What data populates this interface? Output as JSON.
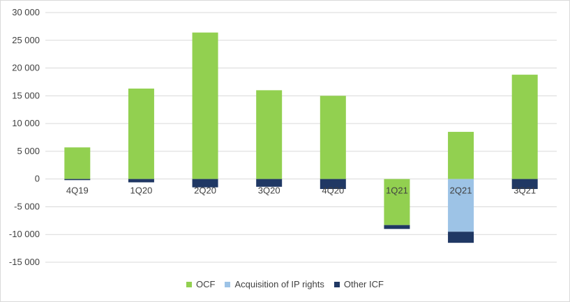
{
  "chart_data": {
    "type": "bar",
    "stacked": true,
    "categories": [
      "4Q19",
      "1Q20",
      "2Q20",
      "3Q20",
      "4Q20",
      "1Q21",
      "2Q21",
      "3Q21"
    ],
    "series": [
      {
        "name": "OCF",
        "color": "#92d050",
        "values": [
          5700,
          16300,
          26400,
          16000,
          15000,
          -8300,
          8500,
          18800
        ]
      },
      {
        "name": "Acquisition of IP rights",
        "color": "#9dc3e6",
        "values": [
          0,
          0,
          0,
          0,
          0,
          0,
          -9500,
          0
        ]
      },
      {
        "name": "Other ICF",
        "color": "#203864",
        "values": [
          -200,
          -600,
          -1500,
          -1400,
          -1800,
          -700,
          -2000,
          -1800
        ]
      }
    ],
    "yticks": [
      30000,
      25000,
      20000,
      15000,
      10000,
      5000,
      0,
      -5000,
      -10000,
      -15000
    ],
    "ytick_labels": [
      "30 000",
      "25 000",
      "20 000",
      "15 000",
      "10 000",
      "5 000",
      "0",
      "-5 000",
      "-10 000",
      "-15 000"
    ],
    "ylim": [
      -15000,
      30000
    ],
    "grid": true,
    "legend_position": "bottom"
  }
}
